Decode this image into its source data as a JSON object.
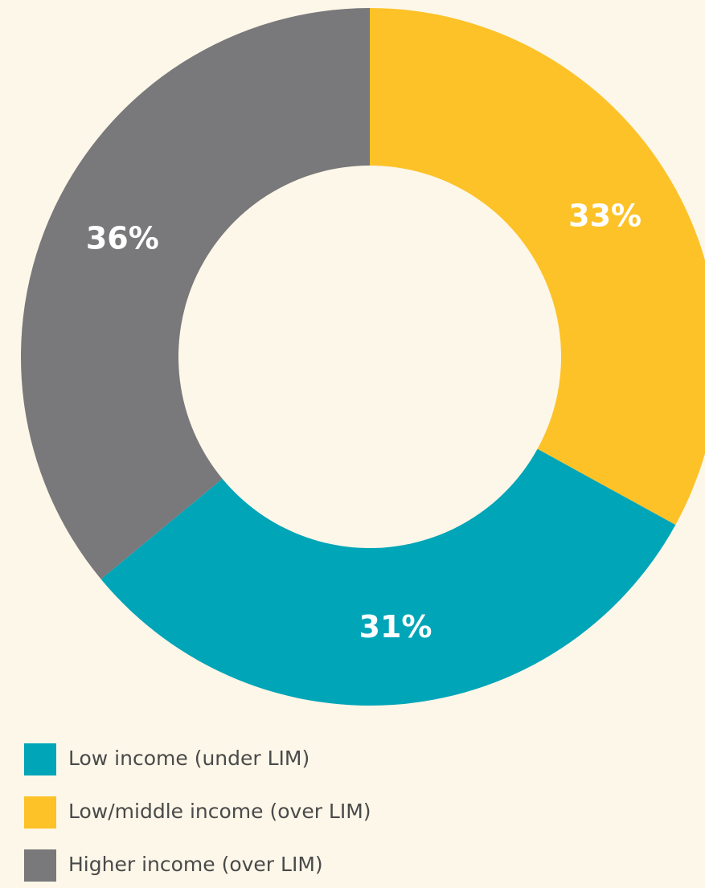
{
  "chart_data": {
    "type": "donut",
    "categories": [
      "Low income (under LIM)",
      "Low/middle income (over LIM)",
      "Higher income (over LIM)"
    ],
    "values": [
      31,
      33,
      36
    ],
    "value_labels": [
      "31%",
      "33%",
      "36%"
    ],
    "colors": [
      "#00a5b8",
      "#fdc228",
      "#79787a"
    ]
  }
}
